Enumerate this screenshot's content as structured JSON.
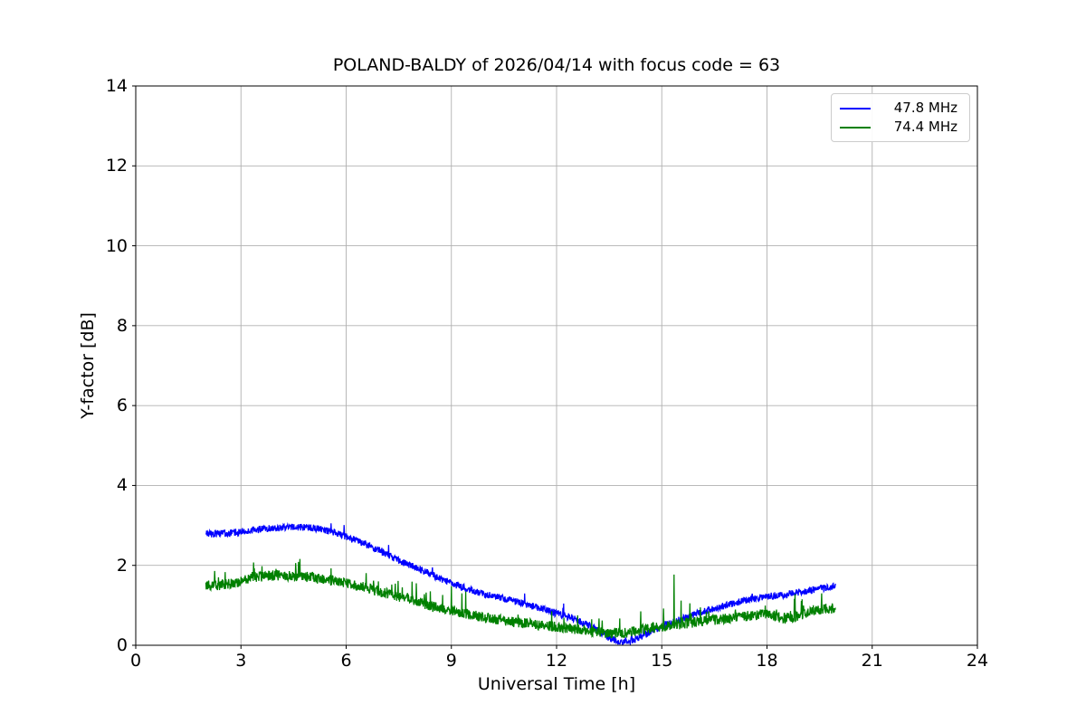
{
  "figure": {
    "background": "#ffffff",
    "axes_frame_color": "#000000",
    "gridline_color": "#b0b0b0",
    "legend_border_color": "#cccccc"
  },
  "chart_data": {
    "type": "line",
    "title": "POLAND-BALDY of 2026/04/14 with focus code = 63",
    "xlabel": "Universal Time [h]",
    "ylabel": "Y-factor [dB]",
    "xlim": [
      0,
      24
    ],
    "ylim": [
      0,
      14
    ],
    "xticks": [
      0,
      3,
      6,
      9,
      12,
      15,
      18,
      21,
      24
    ],
    "yticks": [
      0,
      2,
      4,
      6,
      8,
      10,
      12,
      14
    ],
    "grid": true,
    "legend_position": "upper right",
    "noise_seed": 42,
    "sample_step_hours": 0.01,
    "series": [
      {
        "name": "47.8 MHz",
        "color": "#0000ff",
        "x_range": [
          2.0,
          19.95
        ],
        "noise_amplitude": 0.09,
        "spike_probability": 0.006,
        "anchors": [
          [
            2.0,
            2.78
          ],
          [
            2.5,
            2.8
          ],
          [
            3.0,
            2.84
          ],
          [
            3.5,
            2.9
          ],
          [
            4.0,
            2.93
          ],
          [
            4.7,
            2.96
          ],
          [
            5.2,
            2.92
          ],
          [
            5.6,
            2.85
          ],
          [
            6.0,
            2.72
          ],
          [
            6.5,
            2.54
          ],
          [
            7.0,
            2.36
          ],
          [
            7.5,
            2.12
          ],
          [
            8.0,
            1.94
          ],
          [
            8.5,
            1.74
          ],
          [
            9.0,
            1.55
          ],
          [
            9.5,
            1.4
          ],
          [
            10.0,
            1.27
          ],
          [
            10.5,
            1.17
          ],
          [
            11.0,
            1.06
          ],
          [
            11.5,
            0.93
          ],
          [
            12.0,
            0.8
          ],
          [
            12.5,
            0.67
          ],
          [
            13.0,
            0.46
          ],
          [
            13.4,
            0.24
          ],
          [
            13.8,
            0.08
          ],
          [
            14.2,
            0.13
          ],
          [
            14.6,
            0.3
          ],
          [
            15.0,
            0.47
          ],
          [
            15.5,
            0.63
          ],
          [
            16.0,
            0.79
          ],
          [
            16.5,
            0.92
          ],
          [
            17.0,
            1.04
          ],
          [
            17.5,
            1.15
          ],
          [
            18.0,
            1.23
          ],
          [
            18.4,
            1.25
          ],
          [
            18.8,
            1.31
          ],
          [
            19.2,
            1.37
          ],
          [
            19.6,
            1.44
          ],
          [
            19.95,
            1.47
          ]
        ],
        "spikes": []
      },
      {
        "name": "74.4 MHz",
        "color": "#008000",
        "x_range": [
          2.0,
          19.95
        ],
        "noise_amplitude": 0.13,
        "spike_probability": 0.028,
        "anchors": [
          [
            2.0,
            1.5
          ],
          [
            2.4,
            1.51
          ],
          [
            2.8,
            1.54
          ],
          [
            3.1,
            1.66
          ],
          [
            3.5,
            1.72
          ],
          [
            4.0,
            1.75
          ],
          [
            4.5,
            1.74
          ],
          [
            5.0,
            1.7
          ],
          [
            5.5,
            1.63
          ],
          [
            6.0,
            1.55
          ],
          [
            6.5,
            1.45
          ],
          [
            7.0,
            1.33
          ],
          [
            7.5,
            1.21
          ],
          [
            8.0,
            1.1
          ],
          [
            8.5,
            0.96
          ],
          [
            9.0,
            0.88
          ],
          [
            9.5,
            0.77
          ],
          [
            10.0,
            0.68
          ],
          [
            10.5,
            0.62
          ],
          [
            11.0,
            0.56
          ],
          [
            11.5,
            0.5
          ],
          [
            12.0,
            0.46
          ],
          [
            12.5,
            0.41
          ],
          [
            13.0,
            0.34
          ],
          [
            13.5,
            0.3
          ],
          [
            14.0,
            0.32
          ],
          [
            14.5,
            0.4
          ],
          [
            15.0,
            0.47
          ],
          [
            15.5,
            0.53
          ],
          [
            16.0,
            0.58
          ],
          [
            16.5,
            0.63
          ],
          [
            17.0,
            0.68
          ],
          [
            17.5,
            0.74
          ],
          [
            18.0,
            0.8
          ],
          [
            18.4,
            0.68
          ],
          [
            18.9,
            0.72
          ],
          [
            19.3,
            0.87
          ],
          [
            19.6,
            0.92
          ],
          [
            19.95,
            0.92
          ]
        ],
        "spikes": [
          [
            2.25,
            1.86
          ],
          [
            2.55,
            1.83
          ],
          [
            3.6,
            1.98
          ],
          [
            7.3,
            1.52
          ],
          [
            7.6,
            1.45
          ],
          [
            8.4,
            1.35
          ],
          [
            9.0,
            1.48
          ],
          [
            9.3,
            1.3
          ],
          [
            12.6,
            0.75
          ],
          [
            13.3,
            0.62
          ],
          [
            14.4,
            0.85
          ],
          [
            15.05,
            0.92
          ],
          [
            15.35,
            1.77
          ],
          [
            15.55,
            1.12
          ],
          [
            15.8,
            1.05
          ],
          [
            16.1,
            0.95
          ],
          [
            18.8,
            1.28
          ],
          [
            19.0,
            1.15
          ]
        ]
      }
    ]
  }
}
